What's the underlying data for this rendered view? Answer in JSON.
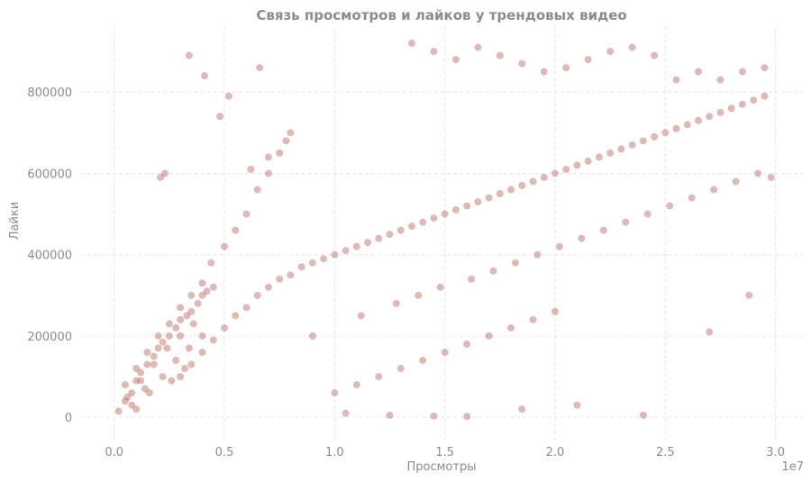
{
  "chart_data": {
    "type": "scatter",
    "title": "Связь просмотров и лайков у трендовых видео",
    "xlabel": "Просмотры",
    "ylabel": "Лайки",
    "x_offset_label": "1e7",
    "xlim": [
      -0.15,
      3.12
    ],
    "ylim": [
      -55000,
      960000
    ],
    "x_ticks": [
      0,
      0.5,
      1.0,
      1.5,
      2.0,
      2.5,
      3.0
    ],
    "x_tick_labels": [
      "0.0",
      "0.5",
      "1.0",
      "1.5",
      "2.0",
      "2.5",
      "3.0"
    ],
    "y_ticks": [
      0,
      200000,
      400000,
      600000,
      800000
    ],
    "y_tick_labels": [
      "0",
      "200000",
      "400000",
      "600000",
      "800000"
    ],
    "grid": true,
    "point_color": "#b5655c",
    "point_opacity": 0.45,
    "series": [
      {
        "x": [
          0.02,
          0.05,
          0.08,
          0.1,
          0.12,
          0.15,
          0.18,
          0.2,
          0.22,
          0.25,
          0.28,
          0.3,
          0.33,
          0.35,
          0.38,
          0.4,
          0.42,
          0.45,
          0.05,
          0.1,
          0.15,
          0.2,
          0.25,
          0.3,
          0.35,
          0.4,
          0.06,
          0.12,
          0.18,
          0.24,
          0.3,
          0.36,
          0.08,
          0.14,
          0.22,
          0.28,
          0.34,
          0.4,
          0.1,
          0.16,
          0.26,
          0.32,
          0.44,
          0.5,
          0.55,
          0.6,
          0.65,
          0.7,
          0.75,
          0.8,
          0.3,
          0.35,
          0.4,
          0.45,
          0.5,
          0.55,
          0.6,
          0.65,
          0.7,
          0.75,
          0.8,
          0.85,
          0.9,
          0.95,
          1.0,
          1.05,
          1.1,
          1.15,
          1.2,
          1.25,
          1.3,
          1.35,
          1.4,
          1.45,
          1.5,
          1.55,
          1.6,
          1.65,
          1.7,
          1.75,
          1.8,
          1.85,
          1.9,
          1.95,
          2.0,
          2.05,
          2.1,
          2.15,
          2.2,
          2.25,
          2.3,
          2.35,
          2.4,
          2.45,
          2.5,
          2.55,
          2.6,
          2.65,
          2.7,
          2.75,
          2.8,
          2.85,
          2.9,
          2.95,
          1.0,
          1.1,
          1.2,
          1.3,
          1.4,
          1.5,
          1.6,
          1.7,
          1.8,
          1.9,
          2.0,
          0.62,
          0.7,
          0.78,
          0.34,
          0.21,
          0.48,
          0.41,
          0.52,
          0.66,
          0.23,
          1.35,
          1.45,
          1.55,
          1.65,
          1.75,
          1.85,
          1.95,
          2.05,
          2.15,
          2.25,
          2.35,
          2.45,
          2.55,
          2.65,
          2.75,
          2.85,
          2.95,
          0.9,
          1.12,
          1.28,
          1.38,
          1.48,
          1.62,
          1.72,
          1.82,
          1.92,
          2.02,
          2.12,
          2.22,
          2.32,
          2.42,
          2.52,
          2.62,
          2.72,
          2.82,
          2.92,
          2.98,
          1.05,
          1.25,
          1.45,
          1.6,
          1.85,
          2.1,
          2.4,
          2.7,
          2.88
        ],
        "y": [
          15000,
          40000,
          60000,
          90000,
          110000,
          130000,
          150000,
          170000,
          185000,
          200000,
          220000,
          240000,
          250000,
          260000,
          280000,
          300000,
          310000,
          320000,
          80000,
          120000,
          160000,
          200000,
          230000,
          270000,
          300000,
          330000,
          50000,
          90000,
          130000,
          170000,
          200000,
          230000,
          30000,
          70000,
          100000,
          140000,
          170000,
          200000,
          20000,
          60000,
          90000,
          120000,
          380000,
          420000,
          460000,
          500000,
          560000,
          600000,
          650000,
          700000,
          100000,
          130000,
          160000,
          190000,
          220000,
          250000,
          270000,
          300000,
          320000,
          340000,
          350000,
          370000,
          380000,
          390000,
          400000,
          410000,
          420000,
          430000,
          440000,
          450000,
          460000,
          470000,
          480000,
          490000,
          500000,
          510000,
          520000,
          530000,
          540000,
          550000,
          560000,
          570000,
          580000,
          590000,
          600000,
          610000,
          620000,
          630000,
          640000,
          650000,
          660000,
          670000,
          680000,
          690000,
          700000,
          710000,
          720000,
          730000,
          740000,
          750000,
          760000,
          770000,
          780000,
          790000,
          60000,
          80000,
          100000,
          120000,
          140000,
          160000,
          180000,
          200000,
          220000,
          240000,
          260000,
          610000,
          640000,
          680000,
          890000,
          590000,
          740000,
          840000,
          790000,
          860000,
          600000,
          920000,
          900000,
          880000,
          910000,
          890000,
          870000,
          850000,
          860000,
          880000,
          900000,
          910000,
          890000,
          830000,
          850000,
          830000,
          850000,
          860000,
          200000,
          250000,
          280000,
          300000,
          320000,
          340000,
          360000,
          380000,
          400000,
          420000,
          440000,
          460000,
          480000,
          500000,
          520000,
          540000,
          560000,
          580000,
          600000,
          590000,
          10000,
          5000,
          3000,
          2000,
          20000,
          30000,
          5000,
          210000,
          300000
        ]
      }
    ]
  }
}
